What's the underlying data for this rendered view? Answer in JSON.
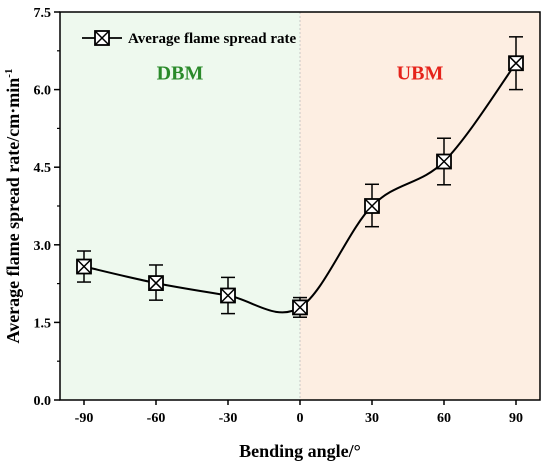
{
  "chart_data": {
    "type": "line",
    "title": "",
    "xlabel": "Bending angle/°",
    "ylabel": "Average flame spread rate/cm·min",
    "ylabel_sup": "-1",
    "xlim": [
      -100,
      100
    ],
    "ylim": [
      0,
      7.5
    ],
    "xticks": [
      -90,
      -60,
      -30,
      0,
      30,
      60,
      90
    ],
    "yticks": [
      0.0,
      1.5,
      3.0,
      4.5,
      6.0,
      7.5
    ],
    "xtick_labels": [
      "-90",
      "-60",
      "-30",
      "0",
      "30",
      "60",
      "90"
    ],
    "ytick_labels": [
      "0.0",
      "1.5",
      "3.0",
      "4.5",
      "6.0",
      "7.5"
    ],
    "grid": false,
    "legend": {
      "position": "top-left",
      "entries": [
        "Average flame spread rate"
      ]
    },
    "series": [
      {
        "name": "Average flame spread rate",
        "marker": "square-x",
        "smooth": true,
        "x": [
          -90,
          -60,
          -30,
          0,
          30,
          60,
          90
        ],
        "y": [
          2.58,
          2.26,
          2.02,
          1.79,
          3.75,
          4.61,
          6.51
        ],
        "err_low": [
          0.3,
          0.33,
          0.35,
          0.19,
          0.4,
          0.45,
          0.51
        ],
        "err_high": [
          0.3,
          0.35,
          0.35,
          0.19,
          0.42,
          0.45,
          0.51
        ]
      }
    ],
    "regions": [
      {
        "label": "DBM",
        "x_from": -100,
        "x_to": 0,
        "fill": "#eef9ee",
        "label_color": "#2a8a2a",
        "label_y": 6.2
      },
      {
        "label": "UBM",
        "x_from": 0,
        "x_to": 100,
        "fill": "#fdeee2",
        "label_color": "#e5231b",
        "label_y": 6.2
      }
    ]
  }
}
